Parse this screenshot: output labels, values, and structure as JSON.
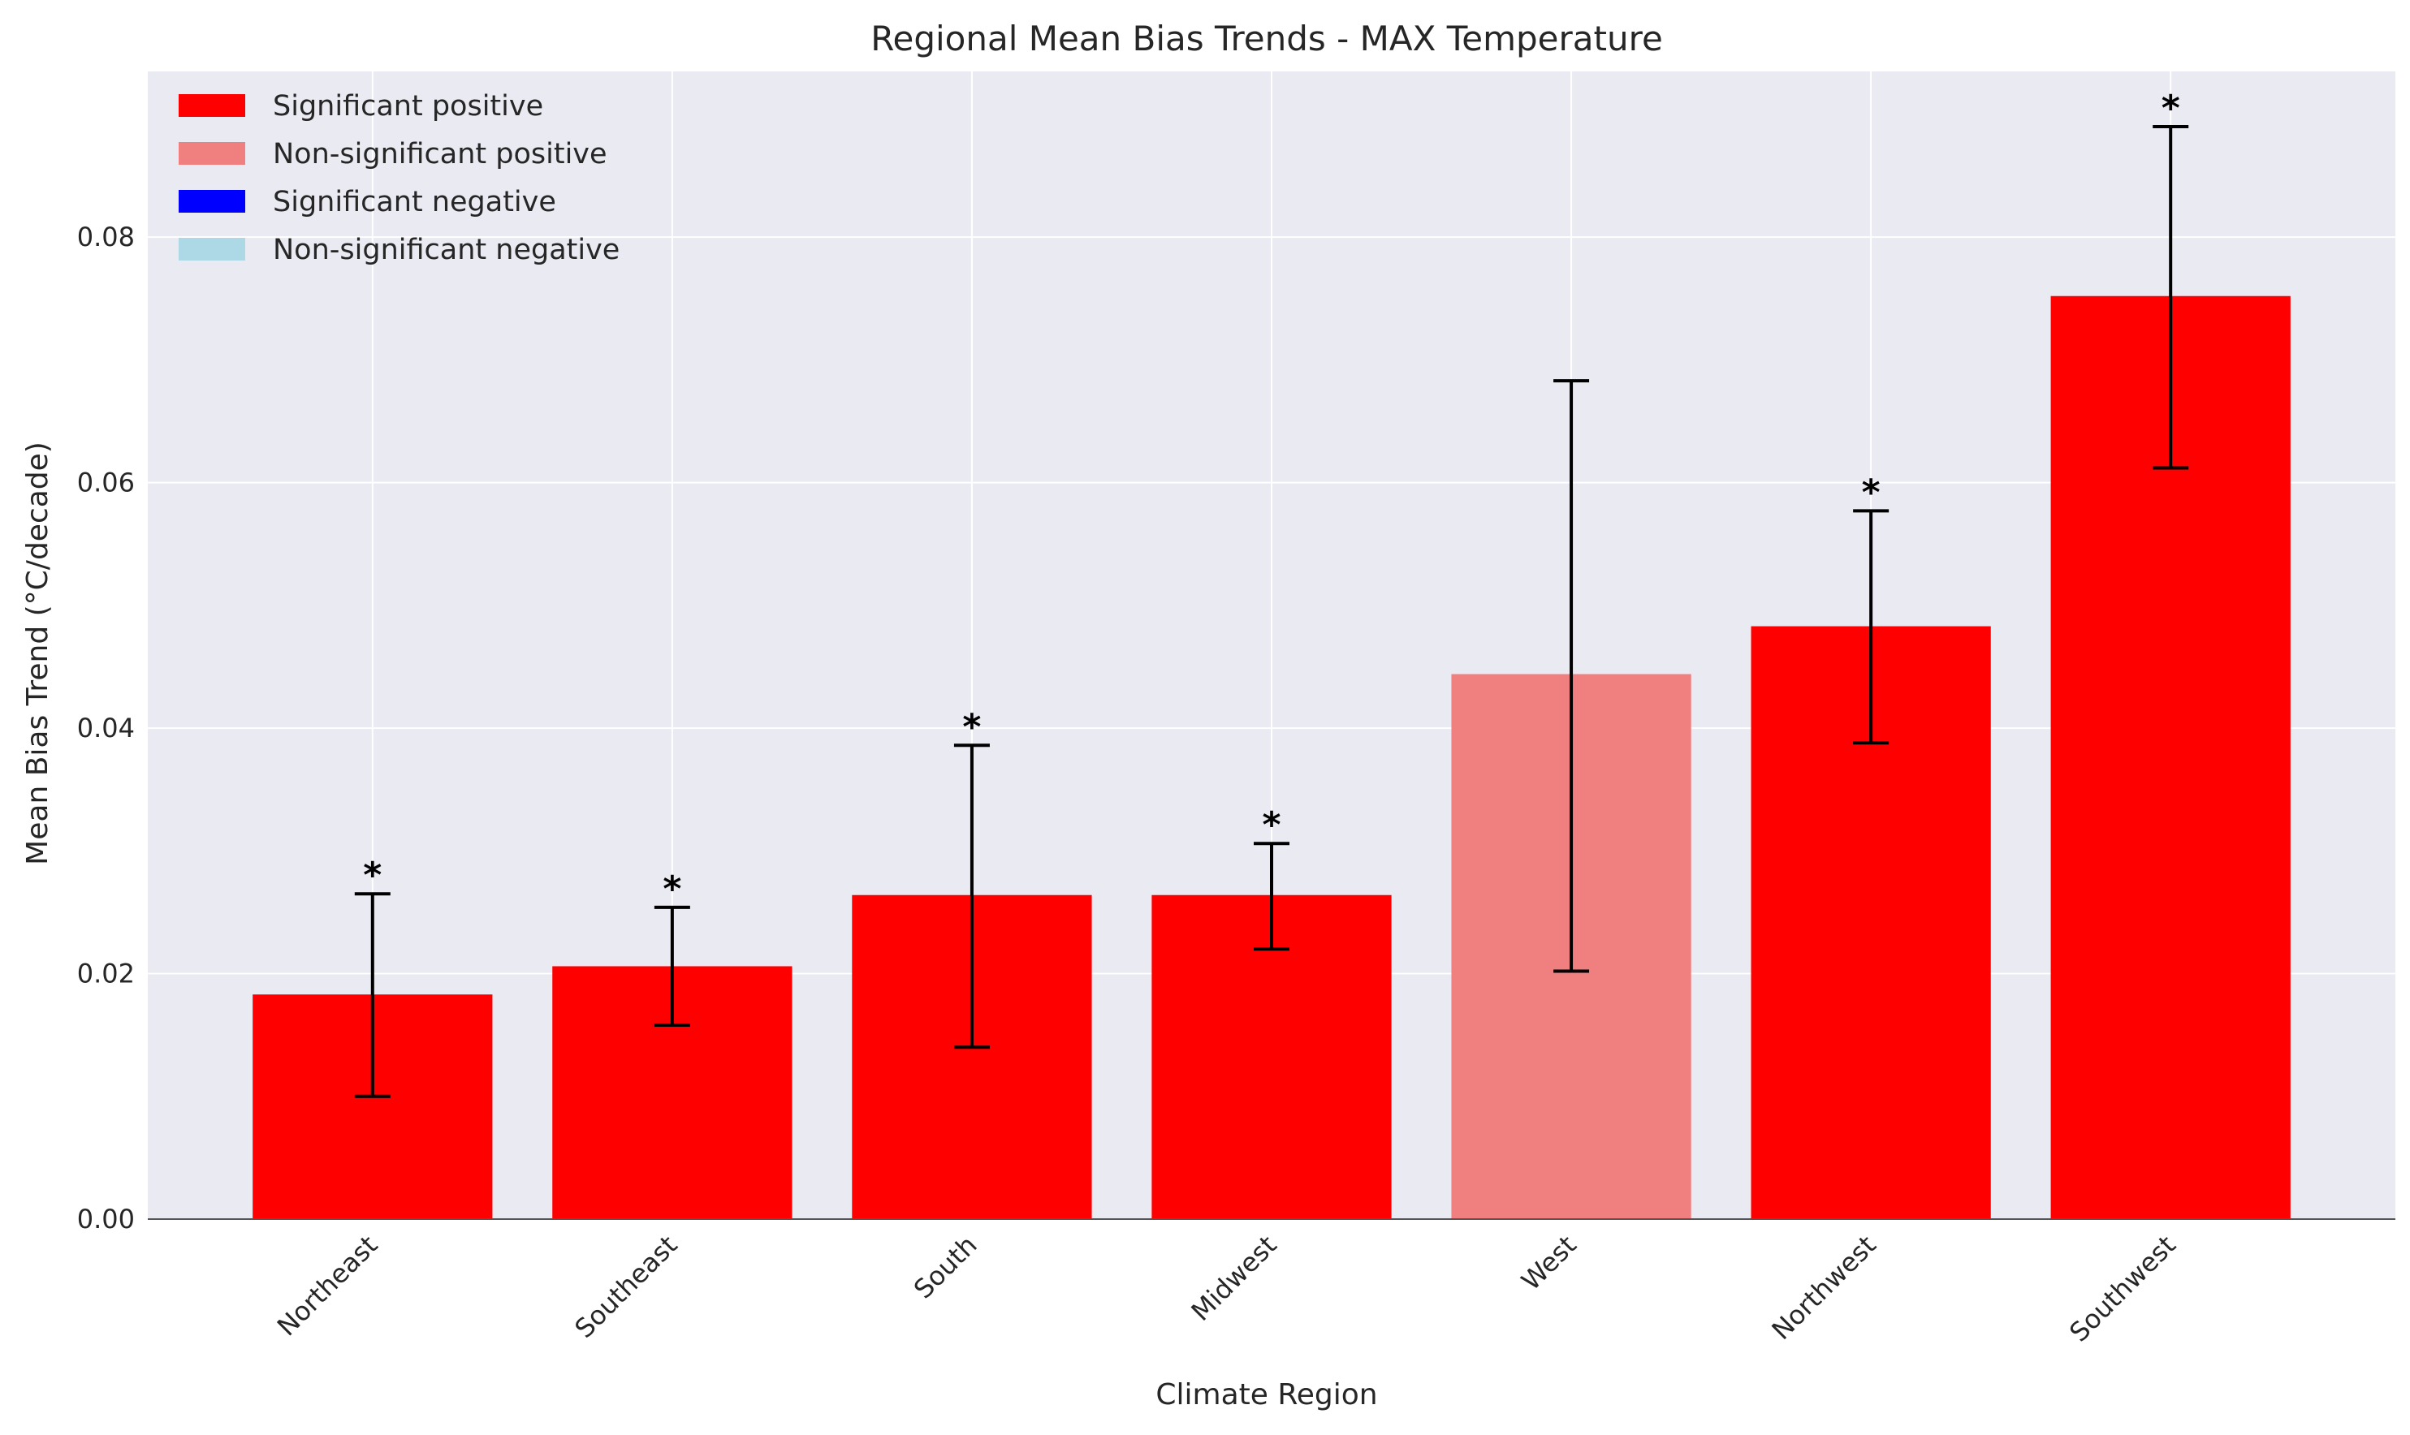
{
  "chart_data": {
    "type": "bar",
    "title": "Regional Mean Bias Trends - MAX Temperature",
    "xlabel": "Climate Region",
    "ylabel": "Mean Bias Trend (°C/decade)",
    "categories": [
      "Northeast",
      "Southeast",
      "South",
      "Midwest",
      "West",
      "Northwest",
      "Southwest"
    ],
    "values": [
      0.0183,
      0.0206,
      0.0264,
      0.0264,
      0.0444,
      0.0483,
      0.0752
    ],
    "error_low": [
      0.01,
      0.0158,
      0.014,
      0.022,
      0.0202,
      0.0388,
      0.0612
    ],
    "error_high": [
      0.0265,
      0.0254,
      0.0386,
      0.0306,
      0.0683,
      0.0577,
      0.089
    ],
    "significant": [
      true,
      true,
      true,
      true,
      false,
      true,
      true
    ],
    "significance_marker": "*",
    "ylim": [
      0,
      0.0935
    ],
    "yticks": [
      0.0,
      0.02,
      0.04,
      0.06,
      0.08
    ],
    "ytick_labels": [
      "0.00",
      "0.02",
      "0.04",
      "0.06",
      "0.08"
    ],
    "grid": true,
    "legend_placement": "top-left",
    "legend": [
      {
        "label": "Significant positive",
        "color": "#ff0000"
      },
      {
        "label": "Non-significant positive",
        "color": "#f08080"
      },
      {
        "label": "Significant negative",
        "color": "#0000ff"
      },
      {
        "label": "Non-significant negative",
        "color": "#add8e6"
      }
    ],
    "colors": {
      "significant_positive": "#ff0000",
      "nonsignificant_positive": "#f08080",
      "plot_background": "#eaeaf2",
      "grid": "#ffffff",
      "error_bar": "#000000"
    }
  }
}
